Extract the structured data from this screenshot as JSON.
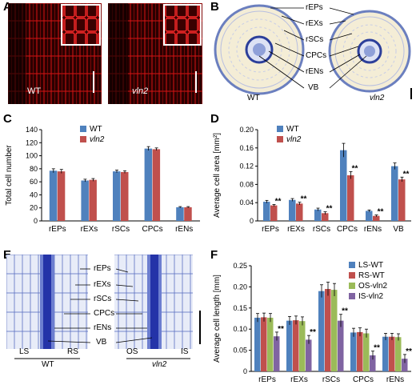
{
  "panels": {
    "A": {
      "letter": "A",
      "wt_label": "WT",
      "mut_label": "vln2"
    },
    "B": {
      "letter": "B",
      "wt_label": "WT",
      "mut_label": "vln2",
      "tissue_labels": [
        "rEPs",
        "rEXs",
        "rSCs",
        "CPCs",
        "rENs",
        "VB"
      ]
    },
    "C": {
      "letter": "C"
    },
    "D": {
      "letter": "D"
    },
    "E": {
      "letter": "E",
      "tissue_labels": [
        "rEPs",
        "rEXs",
        "rSCs",
        "CPCs",
        "rENs",
        "VB"
      ],
      "side_labels": [
        "LS",
        "RS",
        "OS",
        "IS"
      ],
      "wt_label": "WT",
      "mut_label": "vln2"
    },
    "F": {
      "letter": "F"
    }
  },
  "colors": {
    "wt": "#4f81bd",
    "mut": "#c0504d",
    "os": "#9bbb59",
    "is": "#8064a2",
    "red_bg": "#1a0000"
  },
  "chart_data": [
    {
      "id": "C",
      "type": "bar",
      "title": "",
      "ylabel": "Total cell number",
      "xlabel": "",
      "categories": [
        "rEPs",
        "rEXs",
        "rSCs",
        "CPCs",
        "rENs"
      ],
      "ylim": [
        0,
        140
      ],
      "yticks": [
        0,
        20,
        40,
        60,
        80,
        100,
        120,
        140
      ],
      "legend": "top-left",
      "series": [
        {
          "name": "WT",
          "values": [
            77,
            62,
            76,
            111,
            21
          ],
          "errors": [
            3,
            2,
            2,
            3,
            1
          ]
        },
        {
          "name": "vln2",
          "values": [
            76,
            63,
            75,
            110,
            21
          ],
          "errors": [
            3,
            2,
            2,
            2,
            1
          ]
        }
      ]
    },
    {
      "id": "D",
      "type": "bar",
      "title": "",
      "ylabel": "Average cell area [mm²]",
      "xlabel": "",
      "categories": [
        "rEPs",
        "rEXs",
        "rSCs",
        "CPCs",
        "rENs",
        "VB"
      ],
      "ylim": [
        0,
        0.2
      ],
      "yticks": [
        "0",
        "0.04",
        "0.08",
        "0.12",
        "0.16",
        "0.20"
      ],
      "legend": "top-left",
      "annotations": [
        "**",
        "**",
        "**",
        "**",
        "**",
        "**"
      ],
      "series": [
        {
          "name": "WT",
          "values": [
            0.042,
            0.046,
            0.025,
            0.155,
            0.022,
            0.12
          ],
          "errors": [
            0.003,
            0.003,
            0.003,
            0.015,
            0.002,
            0.007
          ]
        },
        {
          "name": "vln2",
          "values": [
            0.034,
            0.038,
            0.017,
            0.1,
            0.011,
            0.091
          ],
          "errors": [
            0.002,
            0.003,
            0.003,
            0.008,
            0.002,
            0.005
          ]
        }
      ]
    },
    {
      "id": "F",
      "type": "bar",
      "title": "",
      "ylabel": "Average cell length [mm]",
      "xlabel": "",
      "categories": [
        "rEPs",
        "rEXs",
        "rSCs",
        "CPCs",
        "rENs"
      ],
      "ylim": [
        0,
        0.25
      ],
      "yticks": [
        "0",
        "0.05",
        "0.10",
        "0.15",
        "0.20",
        "0.25"
      ],
      "legend": "top-right",
      "annotations": [
        "**",
        "**",
        "**",
        "**",
        "**"
      ],
      "series": [
        {
          "name": "LS-WT",
          "values": [
            0.127,
            0.12,
            0.19,
            0.092,
            0.082
          ],
          "errors": [
            0.01,
            0.01,
            0.015,
            0.01,
            0.008
          ]
        },
        {
          "name": "RS-WT",
          "values": [
            0.128,
            0.121,
            0.195,
            0.093,
            0.082
          ],
          "errors": [
            0.01,
            0.01,
            0.016,
            0.01,
            0.008
          ]
        },
        {
          "name": "OS-vln2",
          "values": [
            0.127,
            0.119,
            0.193,
            0.09,
            0.081
          ],
          "errors": [
            0.01,
            0.01,
            0.015,
            0.01,
            0.008
          ]
        },
        {
          "name": "IS-vln2",
          "values": [
            0.083,
            0.075,
            0.12,
            0.038,
            0.03
          ],
          "errors": [
            0.01,
            0.01,
            0.015,
            0.01,
            0.01
          ]
        }
      ]
    }
  ]
}
